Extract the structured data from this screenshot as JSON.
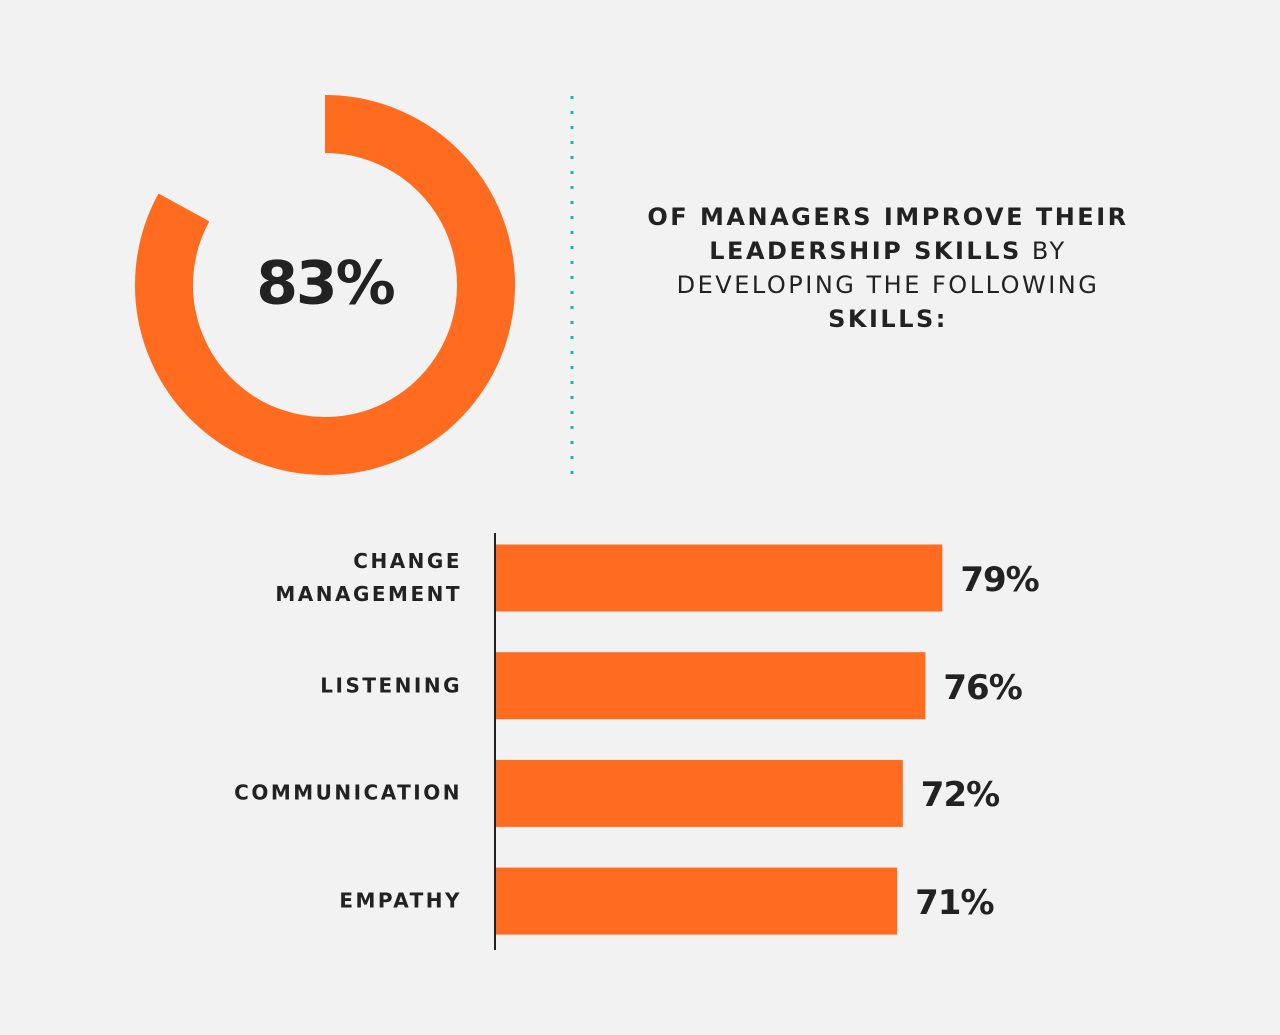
{
  "headline": [
    "OF MANAGERS IMPROVE THEIR",
    "LEADERSHIP SKILLS",
    "BY",
    "DEVELOPING THE FOLLOWING",
    "SKILLS:"
  ],
  "chart_data": [
    {
      "type": "donut",
      "values": [
        83
      ],
      "value_labels": [
        "83%"
      ],
      "color": "#ff6b1f"
    },
    {
      "type": "hbar",
      "categories": [
        "CHANGE MANAGEMENT",
        "LISTENING",
        "COMMUNICATION",
        "EMPATHY"
      ],
      "values": [
        79,
        76,
        72,
        71
      ],
      "value_labels": [
        "79%",
        "76%",
        "72%",
        "71%"
      ],
      "color": "#ff6b1f"
    }
  ]
}
